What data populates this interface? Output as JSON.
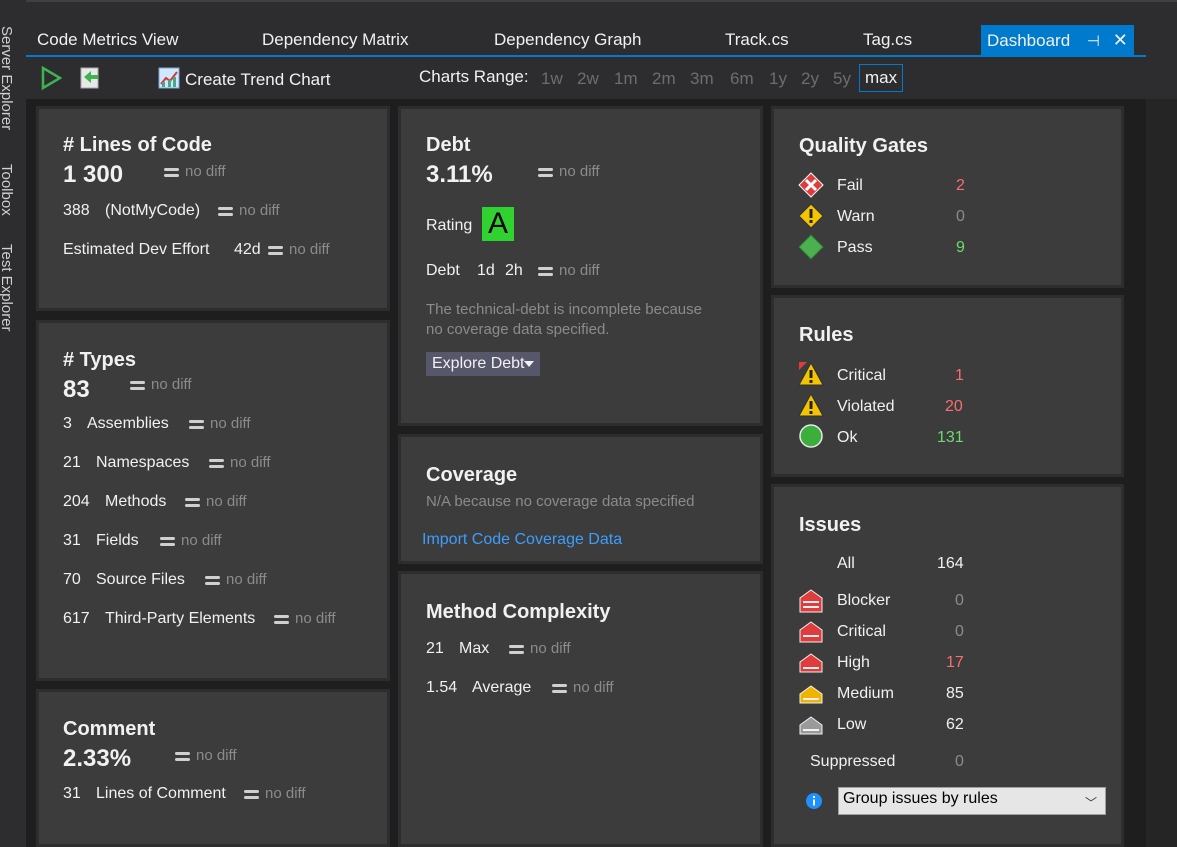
{
  "side_tabs": [
    "Server Explorer",
    "Toolbox",
    "Test Explorer"
  ],
  "tabs": [
    {
      "label": "Code Metrics View"
    },
    {
      "label": "Dependency Matrix"
    },
    {
      "label": "Dependency Graph"
    },
    {
      "label": "Track.cs"
    },
    {
      "label": "Tag.cs"
    },
    {
      "label": "Dashboard",
      "active": true
    }
  ],
  "tab_pin_glyph": "⊣",
  "tab_close_glyph": "✕",
  "toolbar": {
    "create_trend_chart": "Create Trend Chart",
    "charts_range_label": "Charts Range:",
    "ranges": [
      "1w",
      "2w",
      "1m",
      "2m",
      "3m",
      "6m",
      "1y",
      "2y",
      "5y",
      "max"
    ],
    "selected_range": "max"
  },
  "no_diff": "no diff",
  "loc": {
    "title": "# Lines of Code",
    "value": "1 300",
    "notmycode_count": "388",
    "notmycode_label": "(NotMyCode)",
    "effort_label": "Estimated Dev Effort",
    "effort_value": "42d"
  },
  "types": {
    "title": "# Types",
    "value": "83",
    "rows": [
      {
        "count": "3",
        "label": "Assemblies"
      },
      {
        "count": "21",
        "label": "Namespaces"
      },
      {
        "count": "204",
        "label": "Methods"
      },
      {
        "count": "31",
        "label": "Fields"
      },
      {
        "count": "70",
        "label": "Source Files"
      },
      {
        "count": "617",
        "label": "Third-Party Elements"
      }
    ]
  },
  "comment": {
    "title": "Comment",
    "value": "2.33%",
    "lines_count": "31",
    "lines_label": "Lines of Comment"
  },
  "debt": {
    "title": "Debt",
    "value": "3.11%",
    "rating_label": "Rating",
    "rating": "A",
    "debt_label": "Debt",
    "debt_days": "1d",
    "debt_hours": "2h",
    "note_line1": "The technical-debt is incomplete because",
    "note_line2": "no coverage data specified.",
    "explore_button": "Explore Debt"
  },
  "coverage": {
    "title": "Coverage",
    "note": "N/A because no coverage data specified",
    "import_link": "Import Code Coverage Data"
  },
  "complexity": {
    "title": "Method Complexity",
    "max_value": "21",
    "max_label": "Max",
    "avg_value": "1.54",
    "avg_label": "Average"
  },
  "quality_gates": {
    "title": "Quality Gates",
    "rows": [
      {
        "label": "Fail",
        "value": "2",
        "icon": "fail-icon"
      },
      {
        "label": "Warn",
        "value": "0",
        "icon": "warning-icon"
      },
      {
        "label": "Pass",
        "value": "9",
        "icon": "pass-icon"
      }
    ]
  },
  "rules": {
    "title": "Rules",
    "rows": [
      {
        "label": "Critical",
        "value": "1",
        "icon": "critical-warning-icon"
      },
      {
        "label": "Violated",
        "value": "20",
        "icon": "warning-icon"
      },
      {
        "label": "Ok",
        "value": "131",
        "icon": "ok-icon"
      }
    ]
  },
  "issues": {
    "title": "Issues",
    "all_label": "All",
    "all_value": "164",
    "rows": [
      {
        "label": "Blocker",
        "value": "0",
        "icon": "blocker-icon"
      },
      {
        "label": "Critical",
        "value": "0",
        "icon": "critical-severity-icon"
      },
      {
        "label": "High",
        "value": "17",
        "icon": "high-severity-icon"
      },
      {
        "label": "Medium",
        "value": "85",
        "icon": "medium-severity-icon"
      },
      {
        "label": "Low",
        "value": "62",
        "icon": "low-severity-icon"
      }
    ],
    "suppressed_label": "Suppressed",
    "suppressed_value": "0",
    "group_select": "Group issues by rules"
  },
  "colors": {
    "accent": "#007acc",
    "fail": "#e03c3c",
    "warn": "#f5c400",
    "pass": "#4caf50",
    "link": "#3c9dff",
    "red_value": "#f66f6f",
    "green_value": "#6edb6e"
  }
}
